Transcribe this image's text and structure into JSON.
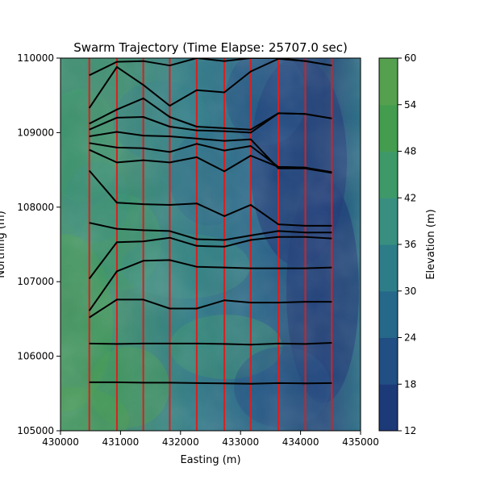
{
  "chart_data": {
    "type": "contour",
    "title": "Swarm Trajectory (Time Elapse: 25707.0 sec)",
    "xlabel": "Easting (m)",
    "ylabel": "Northing (m)",
    "xlim": [
      430000,
      435000
    ],
    "ylim": [
      105000,
      110000
    ],
    "x_ticks": [
      430000,
      431000,
      432000,
      433000,
      434000,
      435000
    ],
    "y_ticks": [
      105000,
      106000,
      107000,
      108000,
      109000,
      110000
    ],
    "colorbar": {
      "label": "Elevation (m)",
      "ticks": [
        12,
        18,
        24,
        30,
        36,
        42,
        48,
        54,
        60
      ],
      "levels": [
        12,
        18,
        24,
        30,
        36,
        42,
        48,
        54,
        60
      ],
      "colors": [
        "#1d3a78",
        "#214e83",
        "#266889",
        "#2d7d89",
        "#388f80",
        "#3d9a68",
        "#449d4f",
        "#55a04e",
        "#6aa95a"
      ]
    },
    "elevation_field_description": "terrain elevation contour (12–60 m)",
    "vertical_lines": {
      "color": "#d92020",
      "x": [
        430480,
        430940,
        431380,
        431820,
        432270,
        432730,
        433170,
        433630,
        434080,
        434520
      ]
    },
    "trajectories": {
      "color": "#000000",
      "x": [
        430480,
        430940,
        431380,
        431820,
        432270,
        432730,
        433170,
        433630,
        434080,
        434520
      ],
      "series": [
        {
          "y": [
            105650,
            105650,
            105645,
            105645,
            105640,
            105635,
            105630,
            105640,
            105635,
            105640
          ]
        },
        {
          "y": [
            106170,
            106165,
            106170,
            106170,
            106170,
            106165,
            106155,
            106170,
            106165,
            106180
          ]
        },
        {
          "y": [
            106520,
            106760,
            106760,
            106640,
            106640,
            106750,
            106720,
            106720,
            106730,
            106730
          ]
        },
        {
          "y": [
            106610,
            107140,
            107280,
            107290,
            107200,
            107190,
            107180,
            107180,
            107180,
            107190
          ]
        },
        {
          "y": [
            107040,
            107530,
            107540,
            107590,
            107480,
            107470,
            107560,
            107600,
            107600,
            107580
          ]
        },
        {
          "y": [
            107790,
            107710,
            107690,
            107680,
            107570,
            107560,
            107620,
            107680,
            107660,
            107660
          ]
        },
        {
          "y": [
            108490,
            108060,
            108040,
            108030,
            108050,
            107880,
            108030,
            107770,
            107750,
            107750
          ]
        },
        {
          "y": [
            108770,
            108600,
            108630,
            108600,
            108670,
            108480,
            108690,
            108540,
            108530,
            108470
          ]
        },
        {
          "y": [
            108860,
            108800,
            108790,
            108740,
            108850,
            108760,
            108820,
            108540,
            108530,
            108460
          ]
        },
        {
          "y": [
            108950,
            109010,
            108960,
            108950,
            108920,
            108890,
            108910,
            108520,
            108520,
            108460
          ]
        },
        {
          "y": [
            109040,
            109200,
            109210,
            109080,
            109030,
            109020,
            109000,
            109260,
            109250,
            109190
          ]
        },
        {
          "y": [
            109120,
            109310,
            109460,
            109210,
            109080,
            109060,
            109040,
            109260,
            109250,
            109190
          ]
        },
        {
          "y": [
            109330,
            109880,
            109640,
            109360,
            109570,
            109540,
            109820,
            109990,
            109960,
            109900
          ]
        },
        {
          "y": [
            109770,
            109950,
            109960,
            109900,
            110000,
            109960,
            110000,
            110000,
            109960,
            109900
          ]
        }
      ]
    },
    "grid": false,
    "legend": "none"
  }
}
